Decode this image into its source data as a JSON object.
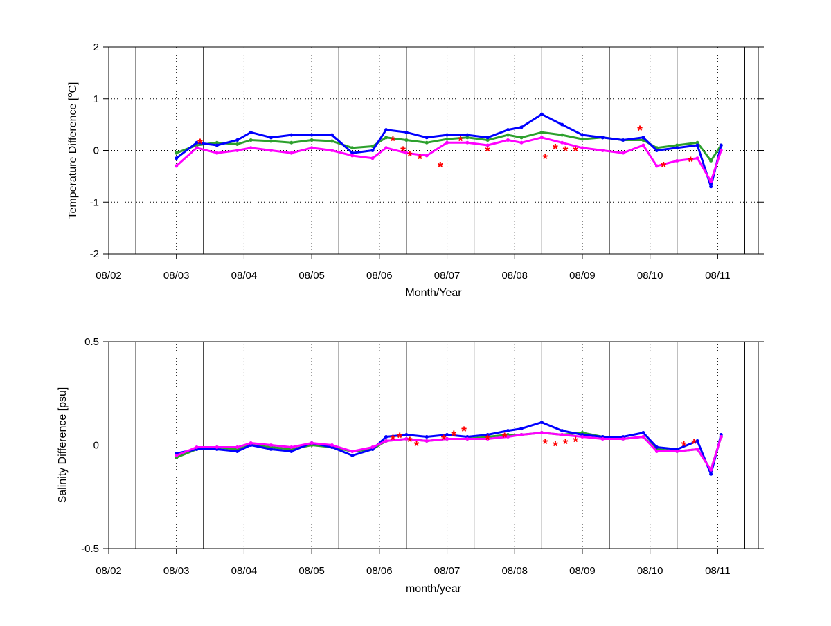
{
  "chart_data": [
    {
      "type": "line",
      "xlabel": "Month/Year",
      "ylabel_main": "Temperature Difference [",
      "ylabel_sup": "o",
      "ylabel_tail": "C]",
      "ylim": [
        -2,
        2
      ],
      "yticks": [
        -2,
        -1,
        0,
        1,
        2
      ],
      "ytick_labels": [
        "-2",
        "-1",
        "0",
        "1",
        "2"
      ],
      "xticks": [
        "08/02",
        "08/03",
        "08/04",
        "08/05",
        "08/06",
        "08/07",
        "08/08",
        "08/09",
        "08/10",
        "08/11"
      ],
      "xlim_months": [
        2,
        11.6
      ],
      "vertical_lines_months": [
        2.4,
        3.4,
        4.4,
        5.4,
        6.4,
        7.4,
        8.4,
        9.4,
        10.4,
        11.4
      ],
      "grid": "dotted",
      "colors": {
        "green": "#2ca02c",
        "blue": "#0000ff",
        "magenta": "#ff00ff",
        "red": "#ff0000"
      },
      "series": [
        {
          "color": "green",
          "x": [
            3.0,
            3.3,
            3.6,
            3.9,
            4.1,
            4.4,
            4.7,
            5.0,
            5.3,
            5.6,
            5.9,
            6.1,
            6.4,
            6.7,
            7.0,
            7.3,
            7.6,
            7.9,
            8.1,
            8.4,
            8.7,
            9.0,
            9.3,
            9.6,
            9.9,
            10.1,
            10.4,
            10.7,
            10.9,
            11.05
          ],
          "y": [
            -0.05,
            0.1,
            0.15,
            0.12,
            0.2,
            0.18,
            0.15,
            0.2,
            0.18,
            0.05,
            0.08,
            0.25,
            0.2,
            0.15,
            0.22,
            0.25,
            0.2,
            0.3,
            0.25,
            0.35,
            0.3,
            0.22,
            0.25,
            0.2,
            0.2,
            0.05,
            0.1,
            0.15,
            -0.2,
            0.1
          ]
        },
        {
          "color": "blue",
          "x": [
            3.0,
            3.3,
            3.6,
            3.9,
            4.1,
            4.4,
            4.7,
            5.0,
            5.3,
            5.6,
            5.9,
            6.1,
            6.4,
            6.7,
            7.0,
            7.3,
            7.6,
            7.9,
            8.1,
            8.4,
            8.7,
            9.0,
            9.3,
            9.6,
            9.9,
            10.1,
            10.4,
            10.7,
            10.9,
            11.05
          ],
          "y": [
            -0.15,
            0.15,
            0.1,
            0.2,
            0.35,
            0.25,
            0.3,
            0.3,
            0.3,
            -0.05,
            0.0,
            0.4,
            0.35,
            0.25,
            0.3,
            0.3,
            0.25,
            0.4,
            0.45,
            0.7,
            0.5,
            0.3,
            0.25,
            0.2,
            0.25,
            0.0,
            0.05,
            0.1,
            -0.7,
            0.1
          ]
        },
        {
          "color": "magenta",
          "x": [
            3.0,
            3.3,
            3.6,
            3.9,
            4.1,
            4.4,
            4.7,
            5.0,
            5.3,
            5.6,
            5.9,
            6.1,
            6.4,
            6.7,
            7.0,
            7.3,
            7.6,
            7.9,
            8.1,
            8.4,
            8.7,
            9.0,
            9.3,
            9.6,
            9.9,
            10.1,
            10.4,
            10.7,
            10.9,
            11.05
          ],
          "y": [
            -0.3,
            0.05,
            -0.05,
            0.0,
            0.05,
            0.0,
            -0.05,
            0.05,
            0.0,
            -0.1,
            -0.15,
            0.05,
            -0.05,
            -0.1,
            0.15,
            0.15,
            0.1,
            0.2,
            0.15,
            0.25,
            0.15,
            0.05,
            0.0,
            -0.05,
            0.1,
            -0.3,
            -0.2,
            -0.15,
            -0.6,
            0.0
          ]
        },
        {
          "color": "red",
          "marker": "*",
          "x": [
            3.35,
            6.2,
            6.35,
            6.45,
            6.6,
            6.9,
            7.2,
            7.6,
            8.45,
            8.6,
            8.75,
            8.9,
            9.85,
            10.2,
            10.6
          ],
          "y": [
            0.15,
            0.2,
            0.0,
            -0.1,
            -0.15,
            -0.3,
            0.2,
            0.0,
            -0.15,
            0.05,
            0.0,
            0.0,
            0.4,
            -0.3,
            -0.2
          ]
        }
      ]
    },
    {
      "type": "line",
      "xlabel": "month/year",
      "ylabel": "Salinity Difference [psu]",
      "ylim": [
        -0.5,
        0.5
      ],
      "yticks": [
        -0.5,
        0,
        0.5
      ],
      "ytick_labels": [
        "-0.5",
        "0",
        "0.5"
      ],
      "xticks": [
        "08/02",
        "08/03",
        "08/04",
        "08/05",
        "08/06",
        "08/07",
        "08/08",
        "08/09",
        "08/10",
        "08/11"
      ],
      "xlim_months": [
        2,
        11.6
      ],
      "vertical_lines_months": [
        2.4,
        3.4,
        4.4,
        5.4,
        6.4,
        7.4,
        8.4,
        9.4,
        10.4,
        11.4
      ],
      "grid": "dotted",
      "colors": {
        "green": "#2ca02c",
        "blue": "#0000ff",
        "magenta": "#ff00ff",
        "red": "#ff0000"
      },
      "series": [
        {
          "color": "green",
          "x": [
            3.0,
            3.3,
            3.6,
            3.9,
            4.1,
            4.4,
            4.7,
            5.0,
            5.3,
            5.6,
            5.9,
            6.1,
            6.4,
            6.7,
            7.0,
            7.3,
            7.6,
            7.9,
            8.1,
            8.4,
            8.7,
            9.0,
            9.3,
            9.6,
            9.9,
            10.1,
            10.4,
            10.7,
            10.9,
            11.05
          ],
          "y": [
            -0.06,
            -0.02,
            -0.01,
            -0.02,
            0.0,
            -0.01,
            -0.02,
            0.0,
            -0.01,
            -0.03,
            -0.02,
            0.02,
            0.03,
            0.02,
            0.03,
            0.03,
            0.04,
            0.05,
            0.05,
            0.06,
            0.05,
            0.06,
            0.04,
            0.03,
            0.04,
            -0.02,
            -0.03,
            -0.02,
            -0.12,
            0.04
          ]
        },
        {
          "color": "blue",
          "x": [
            3.0,
            3.3,
            3.6,
            3.9,
            4.1,
            4.4,
            4.7,
            5.0,
            5.3,
            5.6,
            5.9,
            6.1,
            6.4,
            6.7,
            7.0,
            7.3,
            7.6,
            7.9,
            8.1,
            8.4,
            8.7,
            9.0,
            9.3,
            9.6,
            9.9,
            10.1,
            10.4,
            10.7,
            10.9,
            11.05
          ],
          "y": [
            -0.04,
            -0.02,
            -0.02,
            -0.03,
            0.0,
            -0.02,
            -0.03,
            0.01,
            -0.01,
            -0.05,
            -0.02,
            0.04,
            0.05,
            0.04,
            0.05,
            0.04,
            0.05,
            0.07,
            0.08,
            0.11,
            0.07,
            0.05,
            0.04,
            0.04,
            0.06,
            -0.01,
            -0.02,
            0.02,
            -0.14,
            0.05
          ]
        },
        {
          "color": "magenta",
          "x": [
            3.0,
            3.3,
            3.6,
            3.9,
            4.1,
            4.4,
            4.7,
            5.0,
            5.3,
            5.6,
            5.9,
            6.1,
            6.4,
            6.7,
            7.0,
            7.3,
            7.6,
            7.9,
            8.1,
            8.4,
            8.7,
            9.0,
            9.3,
            9.6,
            9.9,
            10.1,
            10.4,
            10.7,
            10.9,
            11.05
          ],
          "y": [
            -0.05,
            -0.01,
            -0.01,
            -0.01,
            0.01,
            0.0,
            -0.01,
            0.01,
            0.0,
            -0.03,
            -0.01,
            0.02,
            0.03,
            0.02,
            0.03,
            0.03,
            0.03,
            0.04,
            0.05,
            0.06,
            0.05,
            0.04,
            0.03,
            0.03,
            0.04,
            -0.03,
            -0.03,
            -0.02,
            -0.12,
            0.04
          ]
        },
        {
          "color": "red",
          "marker": "*",
          "x": [
            6.2,
            6.3,
            6.45,
            6.55,
            6.95,
            7.1,
            7.25,
            7.6,
            7.85,
            8.45,
            8.6,
            8.75,
            8.9,
            10.5,
            10.65
          ],
          "y": [
            0.03,
            0.04,
            0.02,
            0.0,
            0.03,
            0.05,
            0.07,
            0.03,
            0.04,
            0.01,
            0.0,
            0.01,
            0.02,
            0.0,
            0.01
          ]
        }
      ]
    }
  ]
}
